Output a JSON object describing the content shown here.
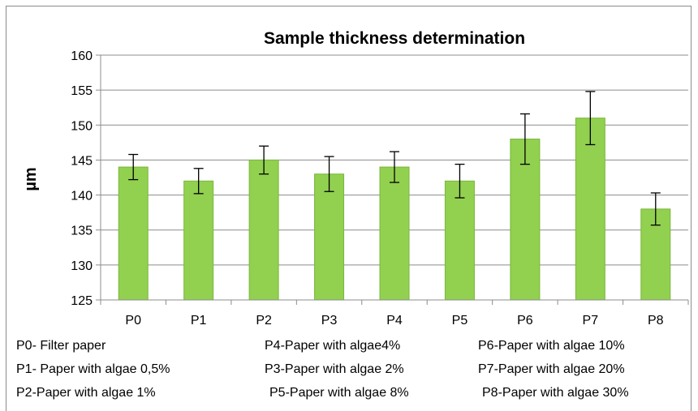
{
  "chart_data": {
    "type": "bar",
    "title": "Sample thickness determination",
    "ylabel": "µm",
    "xlabel": "",
    "categories": [
      "P0",
      "P1",
      "P2",
      "P3",
      "P4",
      "P5",
      "P6",
      "P7",
      "P8"
    ],
    "values": [
      144,
      142,
      145,
      143,
      144,
      142,
      148,
      151,
      138
    ],
    "errors": [
      1.8,
      1.8,
      2.0,
      2.5,
      2.2,
      2.4,
      3.6,
      3.8,
      2.3
    ],
    "ylim": [
      125,
      160
    ],
    "yticks": [
      125,
      130,
      135,
      140,
      145,
      150,
      155,
      160
    ],
    "grid": true,
    "colors": {
      "bar": "#92d050",
      "bar_edge": "#7ab83a",
      "grid": "#8c8c8c",
      "axis": "#8c8c8c",
      "error": "#000000"
    },
    "annotations": [
      [
        "P0- Filter paper",
        "P4-Paper with algae4%",
        "P6-Paper with algae 10%"
      ],
      [
        "P1- Paper with algae 0,5%",
        "P3-Paper with algae 2%",
        "P7-Paper with algae 20%"
      ],
      [
        "P2-Paper with algae 1%",
        "P5-Paper with algae 8%",
        "P8-Paper with algae 30%"
      ]
    ]
  }
}
